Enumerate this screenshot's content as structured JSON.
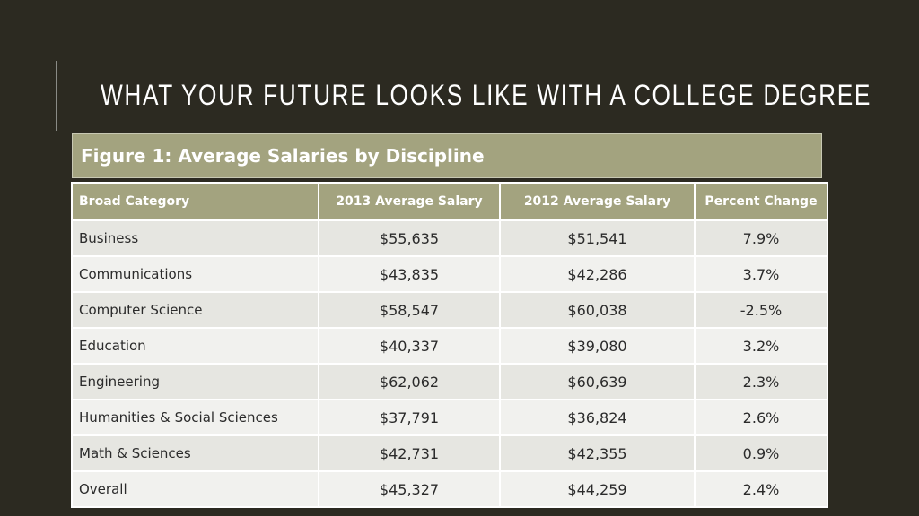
{
  "slide": {
    "title": "WHAT YOUR FUTURE LOOKS LIKE WITH A COLLEGE DEGREE"
  },
  "figure": {
    "caption": "Figure 1: Average Salaries by Discipline"
  },
  "table": {
    "headers": [
      "Broad Category",
      "2013 Average Salary",
      "2012 Average Salary",
      "Percent Change"
    ],
    "rows": [
      [
        "Business",
        "$55,635",
        "$51,541",
        "7.9%"
      ],
      [
        "Communications",
        "$43,835",
        "$42,286",
        "3.7%"
      ],
      [
        "Computer Science",
        "$58,547",
        "$60,038",
        "-2.5%"
      ],
      [
        "Education",
        "$40,337",
        "$39,080",
        "3.2%"
      ],
      [
        "Engineering",
        "$62,062",
        "$60,639",
        "2.3%"
      ],
      [
        "Humanities & Social Sciences",
        "$37,791",
        "$36,824",
        "2.6%"
      ],
      [
        "Math & Sciences",
        "$42,731",
        "$42,355",
        "0.9%"
      ],
      [
        "Overall",
        "$45,327",
        "$44,259",
        "2.4%"
      ]
    ]
  },
  "colors": {
    "background": "#2c2a21",
    "header_fill": "#a3a37f",
    "row_light": "#f1f1ee",
    "row_dark": "#e6e6e1"
  }
}
